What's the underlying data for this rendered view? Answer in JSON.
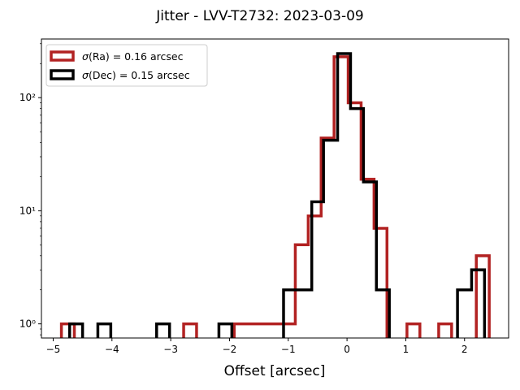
{
  "chart_data": {
    "type": "histogram",
    "title": "Jitter - LVV-T2732: 2023-03-09",
    "xlabel": "Offset [arcsec]",
    "ylabel": "",
    "xlim": [
      -5.2,
      2.75
    ],
    "ylim": [
      0.75,
      330
    ],
    "yscale": "log",
    "grid": false,
    "legend_position": "top-left",
    "x_ticks": [
      -5,
      -4,
      -3,
      -2,
      -1,
      0,
      1,
      2
    ],
    "x_tick_labels": [
      "−5",
      "−4",
      "−3",
      "−2",
      "−1",
      "0",
      "1",
      "2"
    ],
    "y_ticks": [
      1,
      10,
      100
    ],
    "y_tick_labels": [
      "10⁰",
      "10¹",
      "10²"
    ],
    "series": [
      {
        "name": "σ(Ra) = 0.16 arcsec",
        "legend_symbol": "σ",
        "legend_text": "(Ra) = 0.16 arcsec",
        "color": "#b22222",
        "bins": [
          [
            -4.86,
            -4.64,
            1
          ],
          [
            -4.64,
            -4.42,
            0
          ],
          [
            -4.42,
            -2.78,
            0
          ],
          [
            -2.78,
            -2.56,
            1
          ],
          [
            -2.56,
            -1.92,
            0
          ],
          [
            -1.92,
            -1.7,
            1
          ],
          [
            -1.7,
            -0.88,
            1
          ],
          [
            -0.88,
            -0.66,
            5
          ],
          [
            -0.66,
            -0.44,
            9
          ],
          [
            -0.44,
            -0.22,
            44
          ],
          [
            -0.22,
            0.02,
            230
          ],
          [
            0.02,
            0.24,
            90
          ],
          [
            0.24,
            0.46,
            19
          ],
          [
            0.46,
            0.68,
            7
          ],
          [
            0.68,
            1.02,
            0
          ],
          [
            1.02,
            1.24,
            1
          ],
          [
            1.24,
            1.56,
            0
          ],
          [
            1.56,
            1.78,
            1
          ],
          [
            1.78,
            2.2,
            0
          ],
          [
            2.2,
            2.42,
            4
          ]
        ]
      },
      {
        "name": "σ(Dec) = 0.15 arcsec",
        "legend_symbol": "σ",
        "legend_text": "(Dec) = 0.15 arcsec",
        "color": "#000000",
        "bins": [
          [
            -4.72,
            -4.5,
            1
          ],
          [
            -4.5,
            -4.24,
            0
          ],
          [
            -4.24,
            -4.02,
            1
          ],
          [
            -4.02,
            -3.24,
            0
          ],
          [
            -3.24,
            -3.02,
            1
          ],
          [
            -3.02,
            -2.18,
            0
          ],
          [
            -2.18,
            -1.96,
            1
          ],
          [
            -1.96,
            -1.72,
            0
          ],
          [
            -1.72,
            -1.08,
            0
          ],
          [
            -1.08,
            -0.6,
            2
          ],
          [
            -0.6,
            -0.4,
            12
          ],
          [
            -0.4,
            -0.16,
            42
          ],
          [
            -0.16,
            0.06,
            245
          ],
          [
            0.06,
            0.28,
            80
          ],
          [
            0.28,
            0.5,
            18
          ],
          [
            0.5,
            0.72,
            2
          ],
          [
            0.72,
            1.88,
            0
          ],
          [
            1.88,
            2.12,
            2
          ],
          [
            2.12,
            2.34,
            3
          ]
        ]
      }
    ]
  }
}
